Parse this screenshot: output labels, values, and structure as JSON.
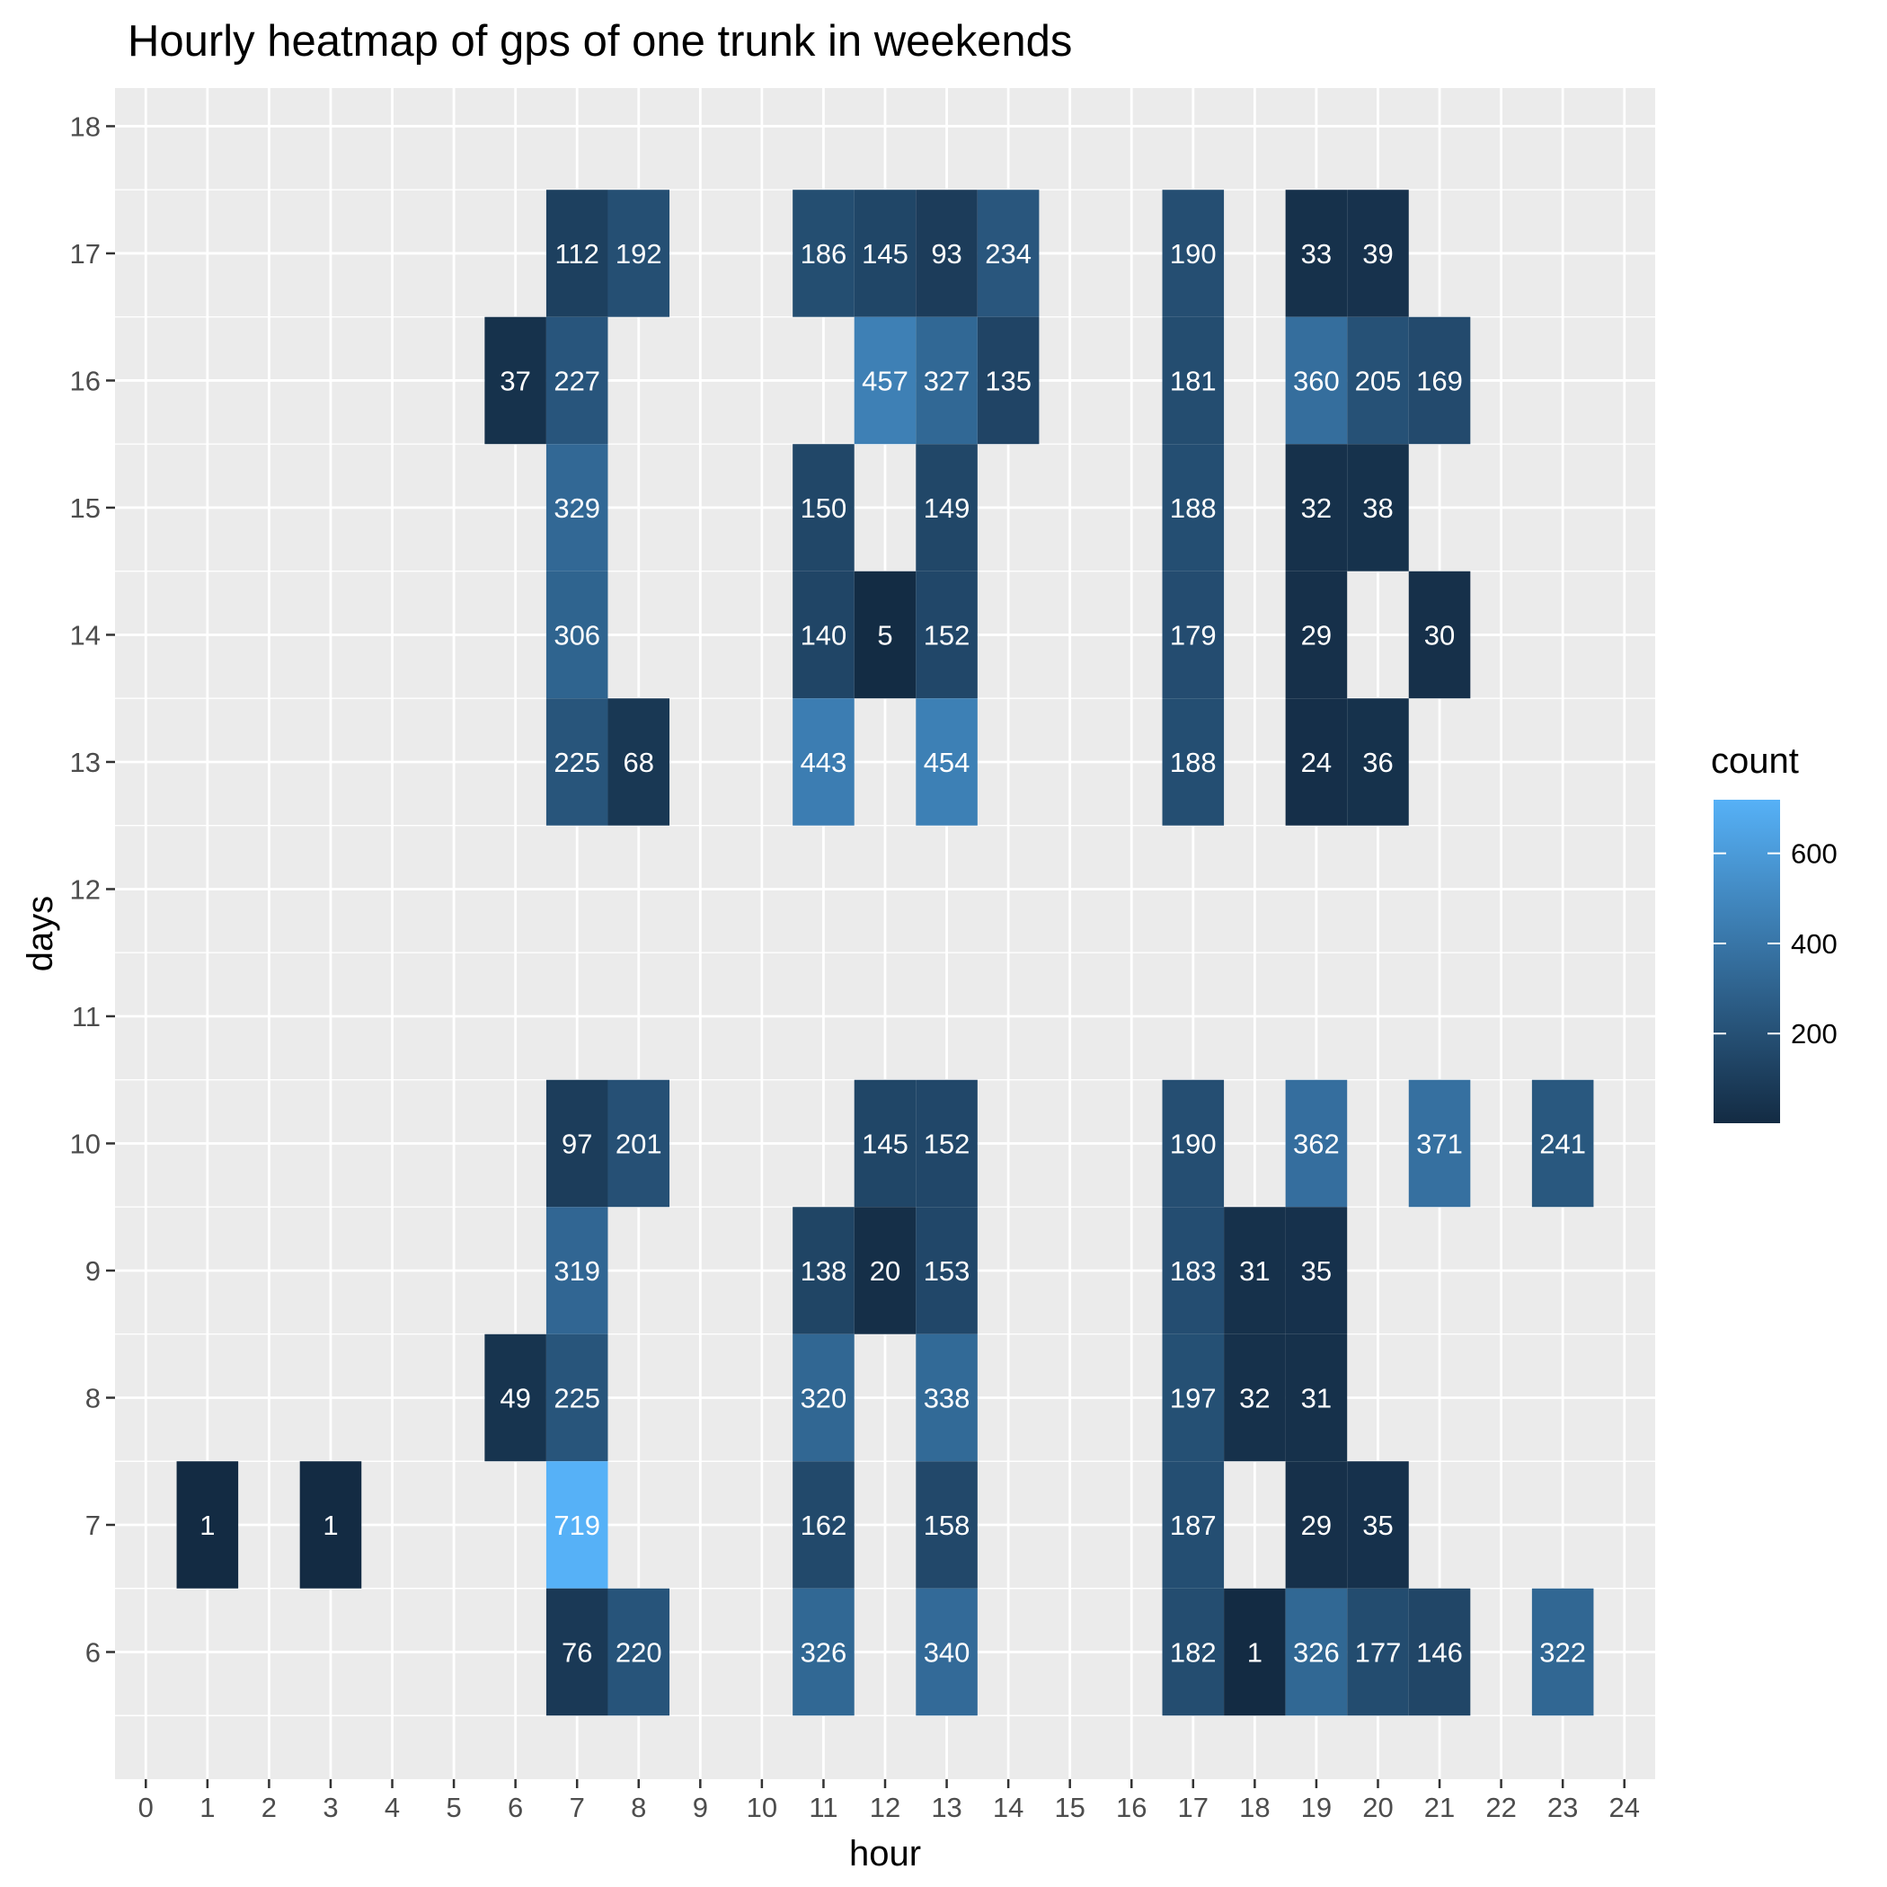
{
  "chart_data": {
    "type": "heatmap",
    "title": "Hourly heatmap of gps of one trunk in weekends",
    "xlabel": "hour",
    "ylabel": "days",
    "x_ticks": [
      0,
      1,
      2,
      3,
      4,
      5,
      6,
      7,
      8,
      9,
      10,
      11,
      12,
      13,
      14,
      15,
      16,
      17,
      18,
      19,
      20,
      21,
      22,
      23,
      24
    ],
    "y_ticks": [
      6,
      7,
      8,
      9,
      10,
      11,
      12,
      13,
      14,
      15,
      16,
      17,
      18
    ],
    "xlim": [
      -0.5,
      24.5
    ],
    "ylim": [
      5,
      18.3
    ],
    "grid": true,
    "legend": {
      "title": "count",
      "placement": "right",
      "ticks": [
        200,
        400,
        600
      ],
      "range": [
        1,
        719
      ],
      "color_low": "#132B43",
      "color_high": "#56B1F7"
    },
    "cells": [
      {
        "day": 17,
        "hour": 7,
        "count": 112
      },
      {
        "day": 17,
        "hour": 8,
        "count": 192
      },
      {
        "day": 17,
        "hour": 11,
        "count": 186
      },
      {
        "day": 17,
        "hour": 12,
        "count": 145
      },
      {
        "day": 17,
        "hour": 13,
        "count": 93
      },
      {
        "day": 17,
        "hour": 14,
        "count": 234
      },
      {
        "day": 17,
        "hour": 17,
        "count": 190
      },
      {
        "day": 17,
        "hour": 19,
        "count": 33
      },
      {
        "day": 17,
        "hour": 20,
        "count": 39
      },
      {
        "day": 16,
        "hour": 6,
        "count": 37
      },
      {
        "day": 16,
        "hour": 7,
        "count": 227
      },
      {
        "day": 16,
        "hour": 12,
        "count": 457
      },
      {
        "day": 16,
        "hour": 13,
        "count": 327
      },
      {
        "day": 16,
        "hour": 14,
        "count": 135
      },
      {
        "day": 16,
        "hour": 17,
        "count": 181
      },
      {
        "day": 16,
        "hour": 19,
        "count": 360
      },
      {
        "day": 16,
        "hour": 20,
        "count": 205
      },
      {
        "day": 16,
        "hour": 21,
        "count": 169
      },
      {
        "day": 15,
        "hour": 7,
        "count": 329
      },
      {
        "day": 15,
        "hour": 11,
        "count": 150
      },
      {
        "day": 15,
        "hour": 13,
        "count": 149
      },
      {
        "day": 15,
        "hour": 17,
        "count": 188
      },
      {
        "day": 15,
        "hour": 19,
        "count": 32
      },
      {
        "day": 15,
        "hour": 20,
        "count": 38
      },
      {
        "day": 14,
        "hour": 7,
        "count": 306
      },
      {
        "day": 14,
        "hour": 11,
        "count": 140
      },
      {
        "day": 14,
        "hour": 12,
        "count": 5
      },
      {
        "day": 14,
        "hour": 13,
        "count": 152
      },
      {
        "day": 14,
        "hour": 17,
        "count": 179
      },
      {
        "day": 14,
        "hour": 19,
        "count": 29
      },
      {
        "day": 14,
        "hour": 21,
        "count": 30
      },
      {
        "day": 13,
        "hour": 7,
        "count": 225
      },
      {
        "day": 13,
        "hour": 8,
        "count": 68
      },
      {
        "day": 13,
        "hour": 11,
        "count": 443
      },
      {
        "day": 13,
        "hour": 13,
        "count": 454
      },
      {
        "day": 13,
        "hour": 17,
        "count": 188
      },
      {
        "day": 13,
        "hour": 19,
        "count": 24
      },
      {
        "day": 13,
        "hour": 20,
        "count": 36
      },
      {
        "day": 10,
        "hour": 7,
        "count": 97
      },
      {
        "day": 10,
        "hour": 8,
        "count": 201
      },
      {
        "day": 10,
        "hour": 12,
        "count": 145
      },
      {
        "day": 10,
        "hour": 13,
        "count": 152
      },
      {
        "day": 10,
        "hour": 17,
        "count": 190
      },
      {
        "day": 10,
        "hour": 19,
        "count": 362
      },
      {
        "day": 10,
        "hour": 21,
        "count": 371
      },
      {
        "day": 10,
        "hour": 23,
        "count": 241
      },
      {
        "day": 9,
        "hour": 7,
        "count": 319
      },
      {
        "day": 9,
        "hour": 11,
        "count": 138
      },
      {
        "day": 9,
        "hour": 12,
        "count": 20
      },
      {
        "day": 9,
        "hour": 13,
        "count": 153
      },
      {
        "day": 9,
        "hour": 17,
        "count": 183
      },
      {
        "day": 9,
        "hour": 18,
        "count": 31
      },
      {
        "day": 9,
        "hour": 19,
        "count": 35
      },
      {
        "day": 8,
        "hour": 6,
        "count": 49
      },
      {
        "day": 8,
        "hour": 7,
        "count": 225
      },
      {
        "day": 8,
        "hour": 11,
        "count": 320
      },
      {
        "day": 8,
        "hour": 13,
        "count": 338
      },
      {
        "day": 8,
        "hour": 17,
        "count": 197
      },
      {
        "day": 8,
        "hour": 18,
        "count": 32
      },
      {
        "day": 8,
        "hour": 19,
        "count": 31
      },
      {
        "day": 7,
        "hour": 1,
        "count": 1
      },
      {
        "day": 7,
        "hour": 3,
        "count": 1
      },
      {
        "day": 7,
        "hour": 7,
        "count": 719
      },
      {
        "day": 7,
        "hour": 11,
        "count": 162
      },
      {
        "day": 7,
        "hour": 13,
        "count": 158
      },
      {
        "day": 7,
        "hour": 17,
        "count": 187
      },
      {
        "day": 7,
        "hour": 19,
        "count": 29
      },
      {
        "day": 7,
        "hour": 20,
        "count": 35
      },
      {
        "day": 6,
        "hour": 7,
        "count": 76
      },
      {
        "day": 6,
        "hour": 8,
        "count": 220
      },
      {
        "day": 6,
        "hour": 11,
        "count": 326
      },
      {
        "day": 6,
        "hour": 13,
        "count": 340
      },
      {
        "day": 6,
        "hour": 17,
        "count": 182
      },
      {
        "day": 6,
        "hour": 18,
        "count": 1
      },
      {
        "day": 6,
        "hour": 19,
        "count": 326
      },
      {
        "day": 6,
        "hour": 20,
        "count": 177
      },
      {
        "day": 6,
        "hour": 21,
        "count": 146
      },
      {
        "day": 6,
        "hour": 23,
        "count": 322
      }
    ]
  }
}
